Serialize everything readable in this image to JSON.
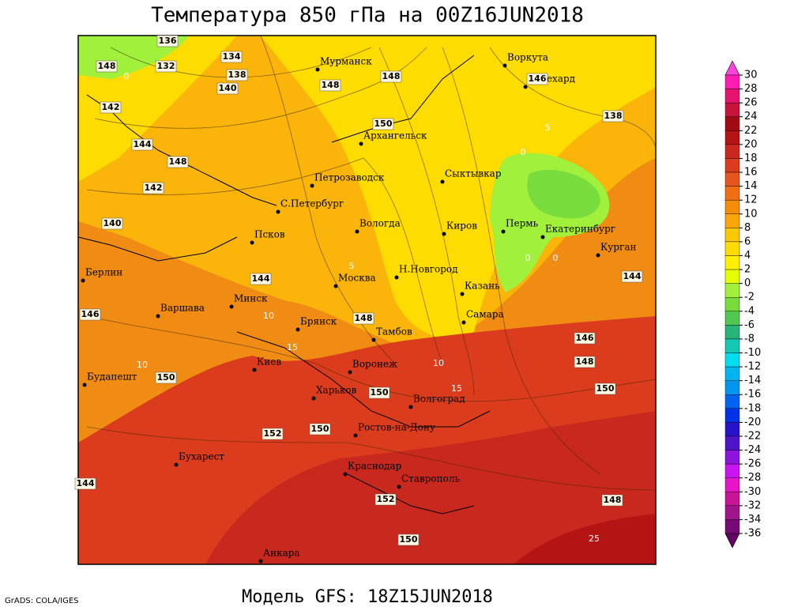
{
  "title": "Температура 850 гПа на 00Z16JUN2018",
  "subtitle": "Модель GFS: 18Z15JUN2018",
  "credit": "GrADS: COLA/IGES",
  "cities": [
    "Мурманск",
    "Воркута",
    "Салехард",
    "Архангельск",
    "Сыктывкар",
    "Петрозаводск",
    "С.Петербург",
    "Вологда",
    "Киров",
    "Пермь",
    "Екатеринбург",
    "Курган",
    "Псков",
    "Москва",
    "Н.Новгород",
    "Казань",
    "Берлин",
    "Варшава",
    "Минск",
    "Брянск",
    "Тамбов",
    "Самара",
    "Киев",
    "Воронеж",
    "Харьков",
    "Волгоград",
    "Будапешт",
    "Ростов-на-Дону",
    "Бухарест",
    "Краснодар",
    "Ставрополь",
    "Анкара"
  ],
  "height_labels": [
    "136",
    "134",
    "132",
    "138",
    "140",
    "142",
    "144",
    "148",
    "142",
    "140",
    "144",
    "146",
    "148",
    "150",
    "150",
    "152",
    "150",
    "152",
    "150",
    "148",
    "146",
    "144",
    "138",
    "146",
    "148",
    "150",
    "148",
    "148",
    "150",
    "148",
    "144"
  ],
  "temperature_labels": [
    "0",
    "5",
    "0",
    "0",
    "0",
    "5",
    "10",
    "10",
    "15",
    "10",
    "15",
    "25"
  ],
  "colorbar": {
    "ticks": [
      30,
      28,
      26,
      24,
      22,
      20,
      18,
      16,
      14,
      12,
      10,
      8,
      6,
      4,
      2,
      0,
      -2,
      -4,
      -6,
      -8,
      -10,
      -12,
      -14,
      -16,
      -18,
      -20,
      -22,
      -24,
      -26,
      -28,
      -30,
      -32,
      -34,
      -36
    ],
    "colors": [
      "#ff44dd",
      "#ff1eb4",
      "#e6146e",
      "#c8143c",
      "#a00a14",
      "#b41414",
      "#c8281e",
      "#dc3c1e",
      "#e6551e",
      "#f06e14",
      "#f58c0a",
      "#faa50a",
      "#fac800",
      "#ffdc00",
      "#fff000",
      "#e6ff00",
      "#a0f03c",
      "#78dc3c",
      "#50c850",
      "#28b478",
      "#14c8b4",
      "#00dcf0",
      "#00b4f0",
      "#0096f0",
      "#0064f0",
      "#0032e6",
      "#2814c8",
      "#5014c8",
      "#8c14dc",
      "#c814f0",
      "#e614c8",
      "#c81496",
      "#a0148c",
      "#780a78",
      "#640064"
    ]
  }
}
